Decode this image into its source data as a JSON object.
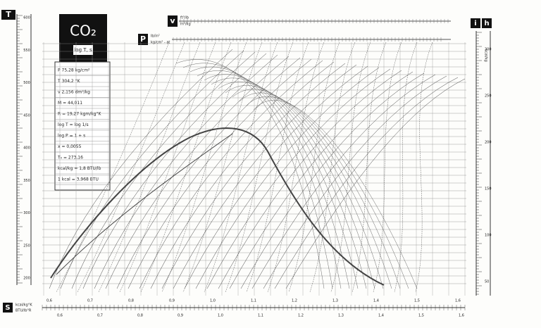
{
  "labels": {
    "t_axis": "T",
    "title": "CO₂",
    "subtitle": "log T, s",
    "v_symbol": "v",
    "v_unit_top": "ft³/lb",
    "v_unit_bottom": "m³/kg",
    "p_symbol": "P",
    "p_unit_top": "lb/in²",
    "p_unit_bottom": "kg/cm² - at",
    "i_symbol": "i",
    "h_symbol": "h",
    "ih_units": "kcal/kg",
    "s_symbol": "S",
    "s_unit_top": "kcal/kg°K",
    "s_unit_bottom": "BTU/lb°R"
  },
  "info_box": {
    "lines": [
      "P 75,28  kg/cm²",
      "T 304,2  °K",
      "v 2,156  dm³/kg",
      "M = 44,011",
      "R = 19,27 kgm/kg°K",
      "log T = log 1/s",
      "log P = 1 + s",
      "x = 0,0055",
      "T₀ = 273,16",
      "kcal/kg = 1,8 BTU/lb",
      "1 kcal = 3,968 BTU"
    ]
  },
  "scales": {
    "t_left": [
      "200",
      "250",
      "300",
      "350",
      "400",
      "450",
      "500",
      "550",
      "600"
    ],
    "i_right": [
      "50",
      "100",
      "150",
      "200",
      "250",
      "300"
    ],
    "s_bottom": [
      "0,6",
      "0,7",
      "0,8",
      "0,9",
      "1,0",
      "1,1",
      "1,2",
      "1,3",
      "1,4",
      "1,5",
      "1,6"
    ],
    "s_bottom_btu": [
      "0,6",
      "0,7",
      "0,8",
      "0,9",
      "1,0",
      "1,1",
      "1,2",
      "1,3",
      "1,4",
      "1,5",
      "1,6"
    ]
  }
}
